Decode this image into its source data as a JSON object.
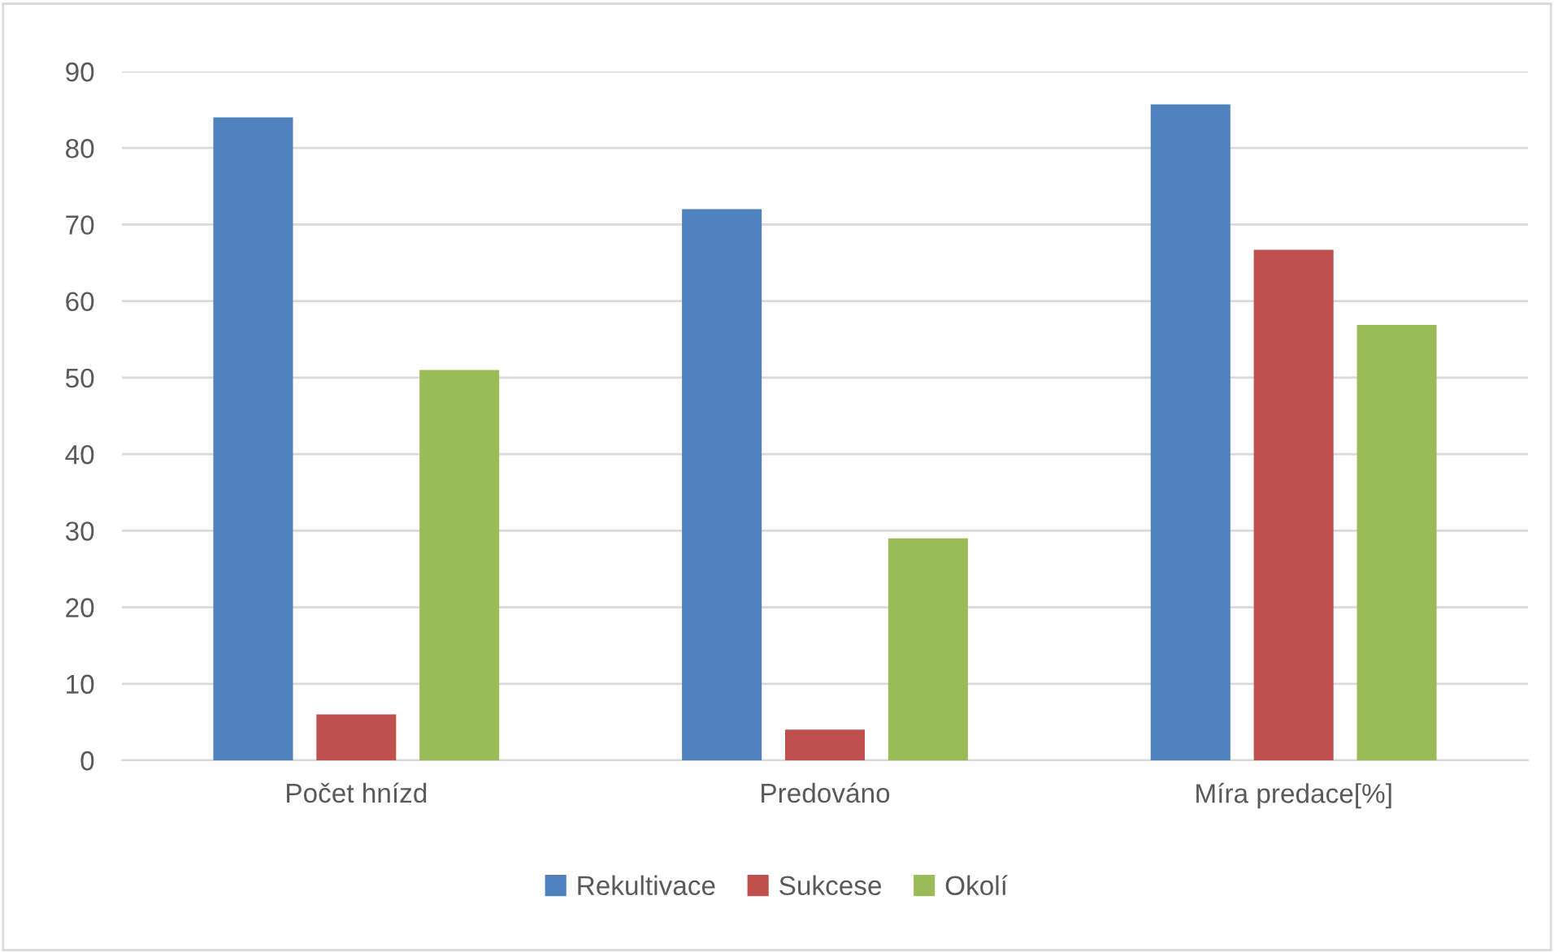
{
  "chart_data": {
    "type": "bar",
    "categories": [
      "Počet hnízd",
      "Predováno",
      "Míra predace[%]"
    ],
    "series": [
      {
        "name": "Rekultivace",
        "color": "#4f81bd",
        "values": [
          84,
          72,
          85.7
        ]
      },
      {
        "name": "Sukcese",
        "color": "#c0504d",
        "values": [
          6,
          4,
          66.7
        ]
      },
      {
        "name": "Okolí",
        "color": "#9bbb59",
        "values": [
          51,
          29,
          56.9
        ]
      }
    ],
    "ylim": [
      0,
      90
    ],
    "yticks": [
      0,
      10,
      20,
      30,
      40,
      50,
      60,
      70,
      80,
      90
    ],
    "grid": "y",
    "legend": "bottom"
  }
}
